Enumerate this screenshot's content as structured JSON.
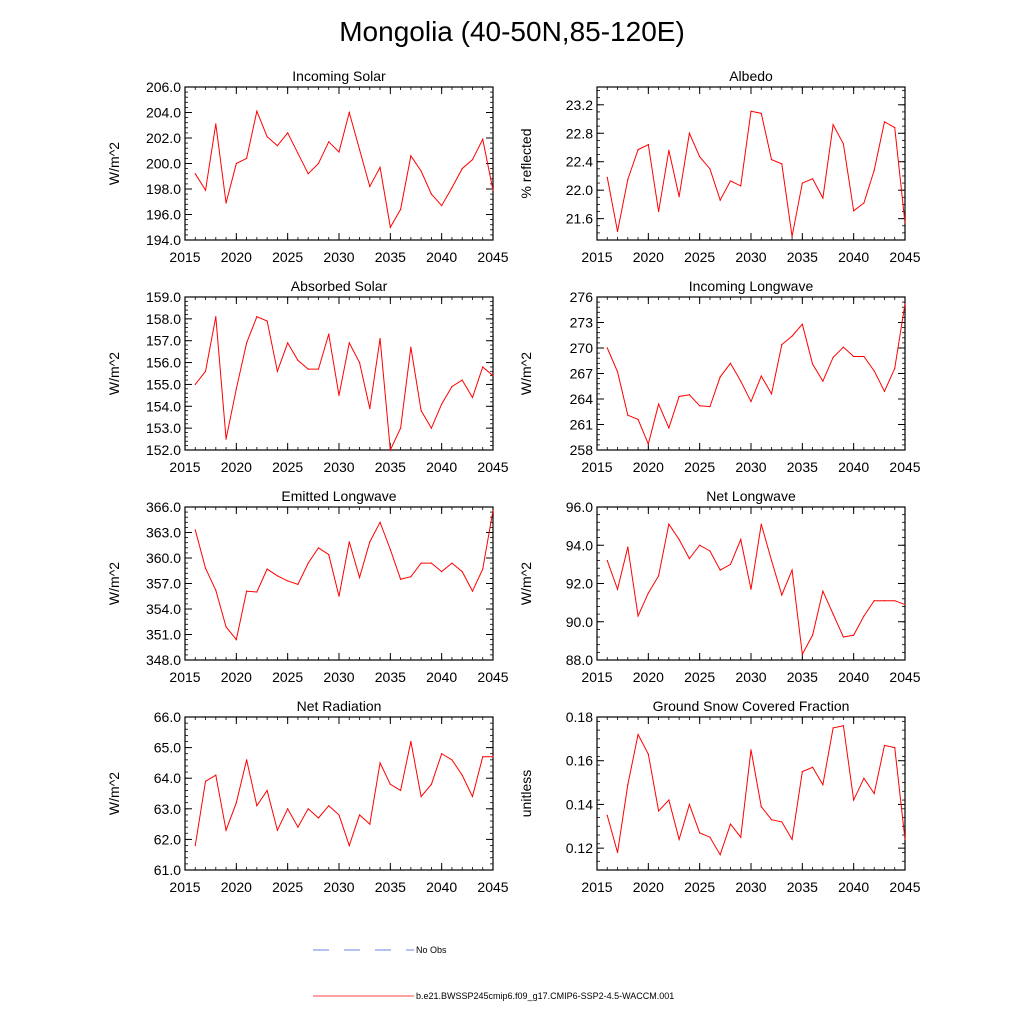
{
  "figure": {
    "title": "Mongolia (40-50N,85-120E)",
    "legend": [
      {
        "label": "No Obs",
        "style": "dashed",
        "color": "#3b5bd6"
      },
      {
        "label": "b.e21.BWSSP245cmip6.f09_g17.CMIP6-SSP2-4.5-WACCM.001",
        "style": "solid",
        "color": "#ff0000"
      }
    ]
  },
  "chart_data": [
    {
      "id": "incoming-solar",
      "type": "line",
      "title": "Incoming Solar",
      "ylabel": "W/m^2",
      "xlim": [
        2015,
        2045
      ],
      "xticks": [
        2015,
        2020,
        2025,
        2030,
        2035,
        2040,
        2045
      ],
      "xminor": 1,
      "ylim": [
        194,
        206
      ],
      "yticks": [
        194.0,
        196.0,
        198.0,
        200.0,
        202.0,
        204.0,
        206.0
      ],
      "yminor": 0.4,
      "ytick_labels": [
        "194.0",
        "196.0",
        "198.0",
        "200.0",
        "202.0",
        "204.0",
        "206.0"
      ],
      "series": [
        {
          "name": "b.e21.BWSSP245cmip6.f09_g17.CMIP6-SSP2-4.5-WACCM.001",
          "color": "#ff0000",
          "x": [
            2016,
            2017,
            2018,
            2019,
            2020,
            2021,
            2022,
            2023,
            2024,
            2025,
            2026,
            2027,
            2028,
            2029,
            2030,
            2031,
            2032,
            2033,
            2034,
            2035,
            2036,
            2037,
            2038,
            2039,
            2040,
            2041,
            2042,
            2043,
            2044,
            2045
          ],
          "y": [
            199.2,
            197.9,
            203.1,
            196.9,
            200.0,
            200.4,
            204.1,
            202.1,
            201.4,
            202.4,
            200.8,
            199.2,
            200.0,
            201.7,
            200.9,
            204.0,
            201.1,
            198.2,
            199.7,
            195.0,
            196.4,
            200.6,
            199.4,
            197.6,
            196.7,
            198.1,
            199.6,
            200.3,
            201.9,
            197.9
          ]
        }
      ]
    },
    {
      "id": "albedo",
      "type": "line",
      "title": "Albedo",
      "ylabel": "% reflected",
      "xlim": [
        2015,
        2045
      ],
      "xticks": [
        2015,
        2020,
        2025,
        2030,
        2035,
        2040,
        2045
      ],
      "xminor": 1,
      "ylim": [
        21.3,
        23.45
      ],
      "yticks": [
        21.6,
        22.0,
        22.4,
        22.8,
        23.2
      ],
      "yminor": 0.1,
      "ytick_labels": [
        "21.6",
        "22.0",
        "22.4",
        "22.8",
        "23.2"
      ],
      "series": [
        {
          "name": "b.e21.BWSSP245cmip6.f09_g17.CMIP6-SSP2-4.5-WACCM.001",
          "color": "#ff0000",
          "x": [
            2016,
            2017,
            2018,
            2019,
            2020,
            2021,
            2022,
            2023,
            2024,
            2025,
            2026,
            2027,
            2028,
            2029,
            2030,
            2031,
            2032,
            2033,
            2034,
            2035,
            2036,
            2037,
            2038,
            2039,
            2040,
            2041,
            2042,
            2043,
            2044,
            2045
          ],
          "y": [
            22.18,
            21.42,
            22.15,
            22.57,
            22.64,
            21.7,
            22.56,
            21.91,
            22.8,
            22.47,
            22.3,
            21.86,
            22.13,
            22.06,
            23.11,
            23.08,
            22.43,
            22.37,
            21.35,
            22.1,
            22.16,
            21.89,
            22.92,
            22.65,
            21.71,
            21.82,
            22.28,
            22.96,
            22.88,
            21.54
          ]
        }
      ]
    },
    {
      "id": "absorbed-solar",
      "type": "line",
      "title": "Absorbed Solar",
      "ylabel": "W/m^2",
      "xlim": [
        2015,
        2045
      ],
      "xticks": [
        2015,
        2020,
        2025,
        2030,
        2035,
        2040,
        2045
      ],
      "xminor": 1,
      "ylim": [
        152,
        159
      ],
      "yticks": [
        152.0,
        153.0,
        154.0,
        155.0,
        156.0,
        157.0,
        158.0,
        159.0
      ],
      "yminor": 0.2,
      "ytick_labels": [
        "152.0",
        "153.0",
        "154.0",
        "155.0",
        "156.0",
        "157.0",
        "158.0",
        "159.0"
      ],
      "series": [
        {
          "name": "b.e21.BWSSP245cmip6.f09_g17.CMIP6-SSP2-4.5-WACCM.001",
          "color": "#ff0000",
          "x": [
            2016,
            2017,
            2018,
            2019,
            2020,
            2021,
            2022,
            2023,
            2024,
            2025,
            2026,
            2027,
            2028,
            2029,
            2030,
            2031,
            2032,
            2033,
            2034,
            2035,
            2036,
            2037,
            2038,
            2039,
            2040,
            2041,
            2042,
            2043,
            2044,
            2045
          ],
          "y": [
            155.0,
            155.6,
            158.1,
            152.5,
            154.8,
            156.9,
            158.1,
            157.9,
            155.6,
            156.9,
            156.1,
            155.7,
            155.7,
            157.3,
            154.5,
            156.9,
            156.0,
            153.9,
            157.1,
            152.0,
            153.0,
            156.7,
            153.8,
            153.0,
            154.1,
            154.9,
            155.2,
            154.4,
            155.8,
            155.4
          ]
        }
      ]
    },
    {
      "id": "incoming-longwave",
      "type": "line",
      "title": "Incoming Longwave",
      "ylabel": "W/m^2",
      "xlim": [
        2015,
        2045
      ],
      "xticks": [
        2015,
        2020,
        2025,
        2030,
        2035,
        2040,
        2045
      ],
      "xminor": 1,
      "ylim": [
        258,
        276
      ],
      "yticks": [
        258,
        261,
        264,
        267,
        270,
        273,
        276
      ],
      "yminor": 0.6,
      "ytick_labels": [
        "258",
        "261",
        "264",
        "267",
        "270",
        "273",
        "276"
      ],
      "series": [
        {
          "name": "b.e21.BWSSP245cmip6.f09_g17.CMIP6-SSP2-4.5-WACCM.001",
          "color": "#ff0000",
          "x": [
            2016,
            2017,
            2018,
            2019,
            2020,
            2021,
            2022,
            2023,
            2024,
            2025,
            2026,
            2027,
            2028,
            2029,
            2030,
            2031,
            2032,
            2033,
            2034,
            2035,
            2036,
            2037,
            2038,
            2039,
            2040,
            2041,
            2042,
            2043,
            2044,
            2045
          ],
          "y": [
            270.0,
            267.2,
            262.1,
            261.6,
            258.7,
            263.4,
            260.6,
            264.3,
            264.5,
            263.2,
            263.1,
            266.6,
            268.2,
            266.1,
            263.7,
            266.7,
            264.6,
            270.4,
            271.4,
            272.8,
            268.1,
            266.1,
            268.9,
            270.1,
            269.0,
            269.0,
            267.3,
            264.9,
            267.6,
            275.2
          ]
        }
      ]
    },
    {
      "id": "emitted-longwave",
      "type": "line",
      "title": "Emitted Longwave",
      "ylabel": "W/m^2",
      "xlim": [
        2015,
        2045
      ],
      "xticks": [
        2015,
        2020,
        2025,
        2030,
        2035,
        2040,
        2045
      ],
      "xminor": 1,
      "ylim": [
        348,
        366
      ],
      "yticks": [
        348.0,
        351.0,
        354.0,
        357.0,
        360.0,
        363.0,
        366.0
      ],
      "yminor": 0.6,
      "ytick_labels": [
        "348.0",
        "351.0",
        "354.0",
        "357.0",
        "360.0",
        "363.0",
        "366.0"
      ],
      "series": [
        {
          "name": "b.e21.BWSSP245cmip6.f09_g17.CMIP6-SSP2-4.5-WACCM.001",
          "color": "#ff0000",
          "x": [
            2016,
            2017,
            2018,
            2019,
            2020,
            2021,
            2022,
            2023,
            2024,
            2025,
            2026,
            2027,
            2028,
            2029,
            2030,
            2031,
            2032,
            2033,
            2034,
            2035,
            2036,
            2037,
            2038,
            2039,
            2040,
            2041,
            2042,
            2043,
            2044,
            2045
          ],
          "y": [
            363.3,
            358.8,
            356.2,
            351.9,
            350.4,
            356.1,
            356.0,
            358.7,
            357.9,
            357.3,
            356.9,
            359.4,
            361.2,
            360.4,
            355.5,
            361.9,
            357.7,
            361.9,
            364.2,
            361.0,
            357.5,
            357.8,
            359.4,
            359.4,
            358.4,
            359.4,
            358.4,
            356.1,
            358.7,
            365.6
          ]
        }
      ]
    },
    {
      "id": "net-longwave",
      "type": "line",
      "title": "Net Longwave",
      "ylabel": "W/m^2",
      "xlim": [
        2015,
        2045
      ],
      "xticks": [
        2015,
        2020,
        2025,
        2030,
        2035,
        2040,
        2045
      ],
      "xminor": 1,
      "ylim": [
        88,
        96
      ],
      "yticks": [
        88.0,
        90.0,
        92.0,
        94.0,
        96.0
      ],
      "yminor": 0.4,
      "ytick_labels": [
        "88.0",
        "90.0",
        "92.0",
        "94.0",
        "96.0"
      ],
      "series": [
        {
          "name": "b.e21.BWSSP245cmip6.f09_g17.CMIP6-SSP2-4.5-WACCM.001",
          "color": "#ff0000",
          "x": [
            2016,
            2017,
            2018,
            2019,
            2020,
            2021,
            2022,
            2023,
            2024,
            2025,
            2026,
            2027,
            2028,
            2029,
            2030,
            2031,
            2032,
            2033,
            2034,
            2035,
            2036,
            2037,
            2038,
            2039,
            2040,
            2041,
            2042,
            2043,
            2044,
            2045
          ],
          "y": [
            93.2,
            91.7,
            93.9,
            90.3,
            91.5,
            92.4,
            95.1,
            94.3,
            93.3,
            94.0,
            93.7,
            92.7,
            93.0,
            94.3,
            91.7,
            95.1,
            93.2,
            91.4,
            92.7,
            88.3,
            89.3,
            91.6,
            90.4,
            89.2,
            89.3,
            90.3,
            91.1,
            91.1,
            91.1,
            90.9
          ]
        }
      ]
    },
    {
      "id": "net-radiation",
      "type": "line",
      "title": "Net Radiation",
      "ylabel": "W/m^2",
      "xlim": [
        2015,
        2045
      ],
      "xticks": [
        2015,
        2020,
        2025,
        2030,
        2035,
        2040,
        2045
      ],
      "xminor": 1,
      "ylim": [
        61,
        66
      ],
      "yticks": [
        61.0,
        62.0,
        63.0,
        64.0,
        65.0,
        66.0
      ],
      "yminor": 0.2,
      "ytick_labels": [
        "61.0",
        "62.0",
        "63.0",
        "64.0",
        "65.0",
        "66.0"
      ],
      "series": [
        {
          "name": "b.e21.BWSSP245cmip6.f09_g17.CMIP6-SSP2-4.5-WACCM.001",
          "color": "#ff0000",
          "x": [
            2016,
            2017,
            2018,
            2019,
            2020,
            2021,
            2022,
            2023,
            2024,
            2025,
            2026,
            2027,
            2028,
            2029,
            2030,
            2031,
            2032,
            2033,
            2034,
            2035,
            2036,
            2037,
            2038,
            2039,
            2040,
            2041,
            2042,
            2043,
            2044,
            2045
          ],
          "y": [
            61.8,
            63.9,
            64.1,
            62.3,
            63.2,
            64.6,
            63.1,
            63.6,
            62.3,
            63.0,
            62.4,
            63.0,
            62.7,
            63.1,
            62.8,
            61.8,
            62.8,
            62.5,
            64.5,
            63.8,
            63.6,
            65.2,
            63.4,
            63.8,
            64.8,
            64.6,
            64.1,
            63.4,
            64.7,
            64.7
          ]
        }
      ]
    },
    {
      "id": "ground-snow-covered-fraction",
      "type": "line",
      "title": "Ground Snow Covered Fraction",
      "ylabel": "unitless",
      "xlim": [
        2015,
        2045
      ],
      "xticks": [
        2015,
        2020,
        2025,
        2030,
        2035,
        2040,
        2045
      ],
      "xminor": 1,
      "ylim": [
        0.11,
        0.18
      ],
      "yticks": [
        0.12,
        0.14,
        0.16,
        0.18
      ],
      "yminor": 0.004,
      "ytick_labels": [
        "0.12",
        "0.14",
        "0.16",
        "0.18"
      ],
      "series": [
        {
          "name": "b.e21.BWSSP245cmip6.f09_g17.CMIP6-SSP2-4.5-WACCM.001",
          "color": "#ff0000",
          "x": [
            2016,
            2017,
            2018,
            2019,
            2020,
            2021,
            2022,
            2023,
            2024,
            2025,
            2026,
            2027,
            2028,
            2029,
            2030,
            2031,
            2032,
            2033,
            2034,
            2035,
            2036,
            2037,
            2038,
            2039,
            2040,
            2041,
            2042,
            2043,
            2044,
            2045
          ],
          "y": [
            0.135,
            0.118,
            0.149,
            0.172,
            0.163,
            0.137,
            0.142,
            0.124,
            0.14,
            0.127,
            0.125,
            0.117,
            0.131,
            0.125,
            0.165,
            0.139,
            0.133,
            0.132,
            0.124,
            0.155,
            0.157,
            0.149,
            0.175,
            0.176,
            0.142,
            0.152,
            0.145,
            0.167,
            0.166,
            0.124
          ]
        }
      ]
    }
  ]
}
